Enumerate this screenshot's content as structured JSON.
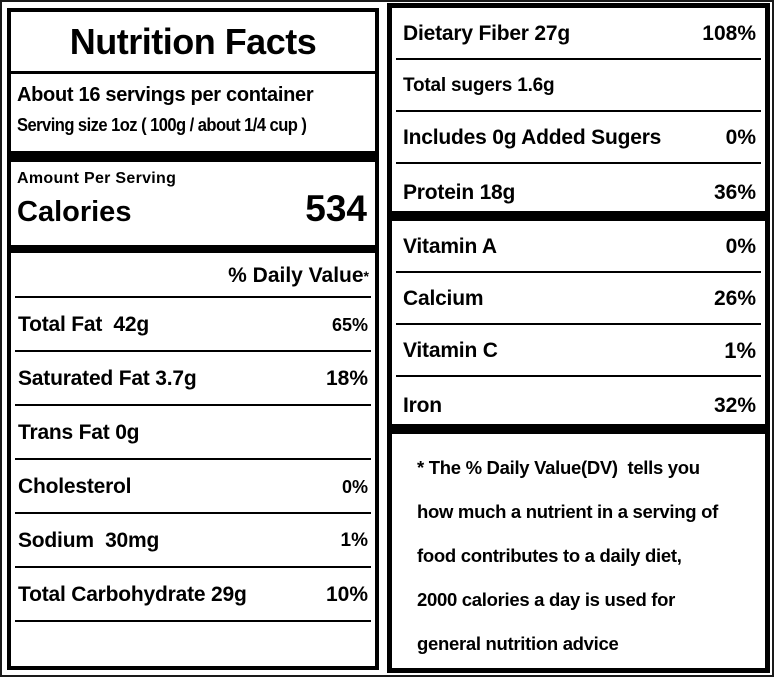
{
  "label": {
    "title": "Nutrition Facts",
    "servings_per_container": "About 16 servings per container",
    "serving_size": "Serving size 1oz ( 100g / about 1/4 cup )",
    "amount_per_serving": "Amount Per Serving",
    "calories_label": "Calories",
    "calories_value": "534",
    "daily_value_header": "% Daily Value",
    "daily_value_asterisk": "*",
    "left_rows": [
      {
        "name": "Total Fat  42g",
        "dv": "65%",
        "divider": "thin"
      },
      {
        "name": "Saturated Fat 3.7g",
        "dv": "18%",
        "divider": "thin"
      },
      {
        "name": "Trans Fat 0g",
        "dv": "",
        "divider": "thin"
      },
      {
        "name": "Cholesterol",
        "dv": "0%",
        "divider": "thin"
      },
      {
        "name": "Sodium  30mg",
        "dv": "1%",
        "divider": "thin"
      },
      {
        "name": "Total Carbohydrate 29g",
        "dv": "10%",
        "divider": "thin"
      }
    ],
    "right_rows": [
      {
        "name": "Dietary Fiber 27g",
        "dv": "108%",
        "divider": "thin"
      },
      {
        "name": "Total sugers 1.6g",
        "dv": "",
        "divider": "thin"
      },
      {
        "name": "Includes 0g Added Sugers",
        "dv": "0%",
        "divider": "thin"
      },
      {
        "name": "Protein 18g",
        "dv": "36%",
        "divider": "thick"
      },
      {
        "name": "Vitamin A",
        "dv": "0%",
        "divider": "thin"
      },
      {
        "name": "Calcium",
        "dv": "26%",
        "divider": "thin"
      },
      {
        "name": "Vitamin C",
        "dv": "1%",
        "divider": "thin"
      },
      {
        "name": "Iron",
        "dv": "32%",
        "divider": "thick"
      }
    ],
    "footnote_lines": [
      "* The % Daily Value(DV)  tells you",
      "how much a nutrient in a serving of",
      "food contributes to a daily diet,",
      "2000 calories a day is used for",
      "general nutrition advice"
    ]
  },
  "colors": {
    "ink": "#000000",
    "background": "#ffffff"
  }
}
